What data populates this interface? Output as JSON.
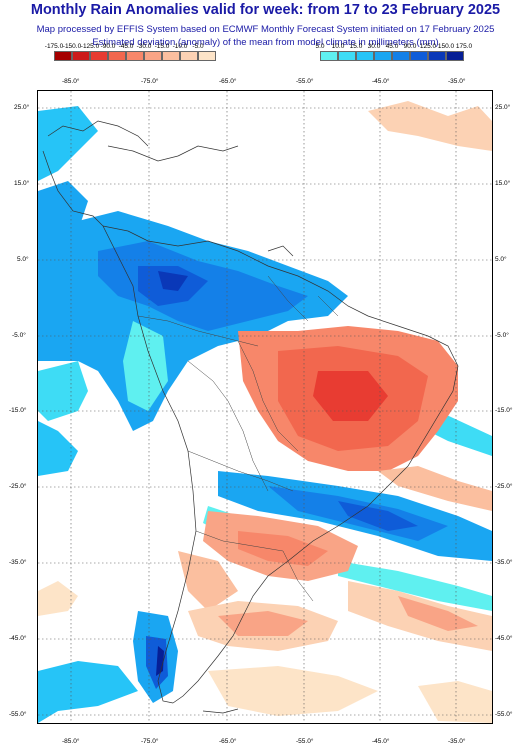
{
  "header": {
    "title": "Monthly Rain Anomalies valid for week: from 17 to 23 February 2025",
    "line1": "Map processed by EFFIS System based on ECMWF Monthly Forecast System initiated on 17 February 2025",
    "line2": "Estimated deviation (anomaly) of the mean from model climate in millimeters (mm)"
  },
  "legend_negative": {
    "ticks": [
      "-175.0",
      "-150.0",
      "-125.0",
      "-90.0",
      "-45.0",
      "-30.0",
      "-15.0",
      "-10.0",
      "-5.0"
    ],
    "colors": [
      "#a50000",
      "#cc1a1a",
      "#e83c32",
      "#f2674e",
      "#f7876a",
      "#f9a486",
      "#fbbf9f",
      "#fcd2b4",
      "#fde4c8"
    ]
  },
  "legend_positive": {
    "ticks": [
      "5.0",
      "10.0",
      "15.0",
      "30.0",
      "45.0",
      "90.0",
      "125.0",
      "150.0",
      "175.0"
    ],
    "colors": [
      "#5ff0f0",
      "#3edcf5",
      "#26c4f7",
      "#1aa6f2",
      "#1480e8",
      "#0f5cd8",
      "#0a38b8",
      "#061f96"
    ]
  },
  "map": {
    "top_lon_labels": [
      "-85.0°",
      "-75.0°",
      "-65.0°",
      "-55.0°",
      "-45.0°",
      "-35.0°"
    ],
    "bottom_lon_labels": [
      "-85.0°",
      "-75.0°",
      "-65.0°",
      "-55.0°",
      "-45.0°",
      "-35.0°"
    ],
    "left_lat_labels": [
      "25.0°",
      "15.0°",
      "5.0°",
      "-5.0°",
      "-15.0°",
      "-25.0°",
      "-35.0°",
      "-45.0°",
      "-55.0°"
    ],
    "right_lat_labels": [
      "25.0°",
      "15.0°",
      "5.0°",
      "-5.0°",
      "-15.0°",
      "-25.0°",
      "-35.0°",
      "-45.0°",
      "-55.0°"
    ]
  }
}
